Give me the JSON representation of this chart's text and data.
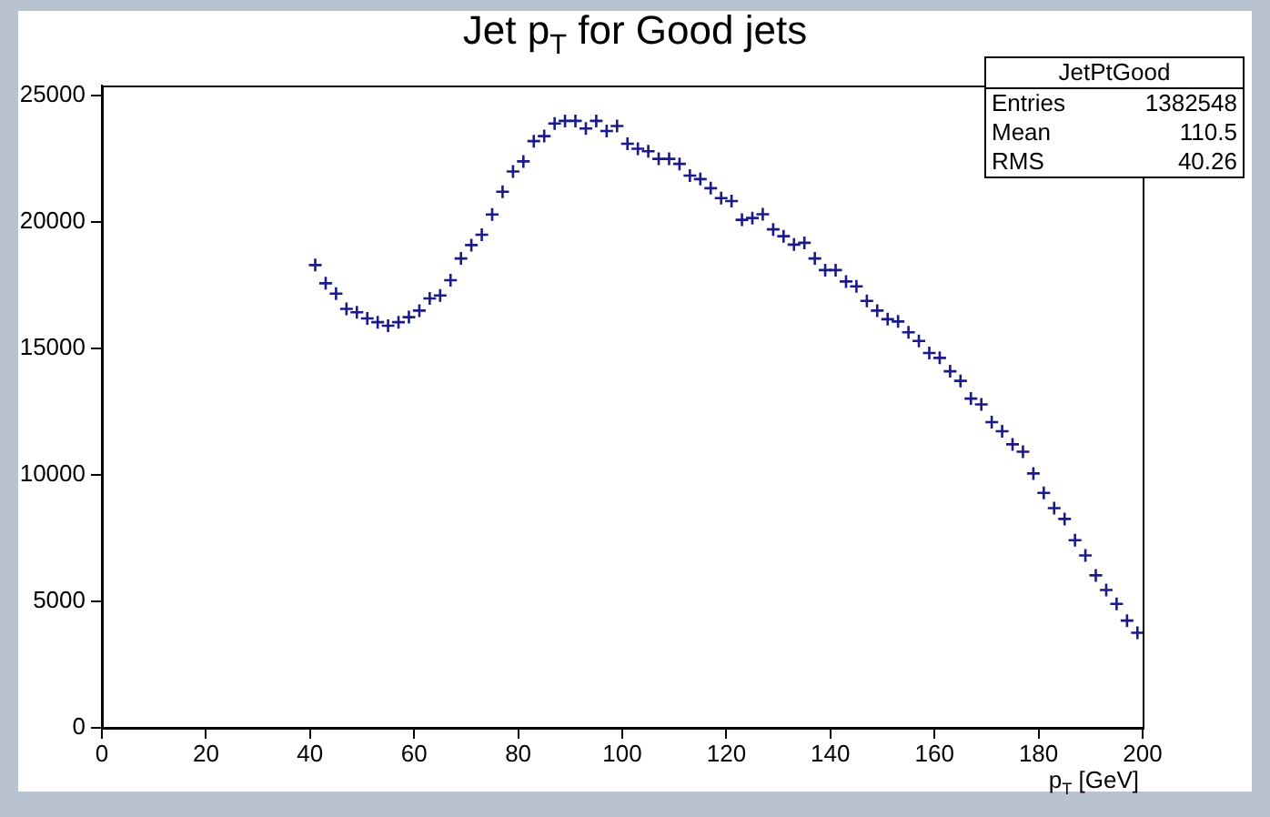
{
  "chart_data": {
    "type": "scatter",
    "title": "Jet p$_{T}$ for Good jets",
    "xlabel": "p$_{T}$ [GeV]",
    "x": [
      41,
      43,
      45,
      47,
      49,
      51,
      53,
      55,
      57,
      59,
      61,
      63,
      65,
      67,
      69,
      71,
      73,
      75,
      77,
      79,
      81,
      83,
      85,
      87,
      89,
      91,
      93,
      95,
      97,
      99,
      101,
      103,
      105,
      107,
      109,
      111,
      113,
      115,
      117,
      119,
      121,
      123,
      125,
      127,
      129,
      131,
      133,
      135,
      137,
      139,
      141,
      143,
      145,
      147,
      149,
      151,
      153,
      155,
      157,
      159,
      161,
      163,
      165,
      167,
      169,
      171,
      173,
      175,
      177,
      179,
      181,
      183,
      185,
      187,
      189,
      191,
      193,
      195,
      197,
      199
    ],
    "values": [
      18300,
      17580,
      17170,
      16570,
      16430,
      16190,
      16040,
      15900,
      16040,
      16240,
      16500,
      16980,
      17100,
      17700,
      18560,
      19090,
      19500,
      20300,
      21200,
      22000,
      22400,
      23200,
      23400,
      23900,
      24000,
      24000,
      23700,
      24000,
      23600,
      23800,
      23100,
      22900,
      22800,
      22500,
      22500,
      22300,
      21840,
      21700,
      21340,
      20950,
      20830,
      20090,
      20160,
      20310,
      19710,
      19440,
      19110,
      19180,
      18560,
      18100,
      18100,
      17650,
      17460,
      16880,
      16500,
      16160,
      16070,
      15640,
      15300,
      14820,
      14630,
      14100,
      13720,
      13020,
      12790,
      12090,
      11730,
      11210,
      10920,
      10060,
      9290,
      8690,
      8260,
      7420,
      6820,
      6030,
      5450,
      4900,
      4240,
      3760
    ],
    "color": "#1a1a8c",
    "marker": "cross",
    "xlim": [
      0,
      200
    ],
    "xticks": [
      0,
      20,
      40,
      60,
      80,
      100,
      120,
      140,
      160,
      180,
      200
    ],
    "ylim": [
      0,
      25400
    ],
    "yticks": [
      0,
      5000,
      10000,
      15000,
      20000,
      25000
    ],
    "grid": false,
    "legend": false,
    "annotations": [
      "JetPtGood",
      "Entries",
      "1382548",
      "Mean",
      "110.5",
      "RMS",
      "40.26"
    ]
  }
}
